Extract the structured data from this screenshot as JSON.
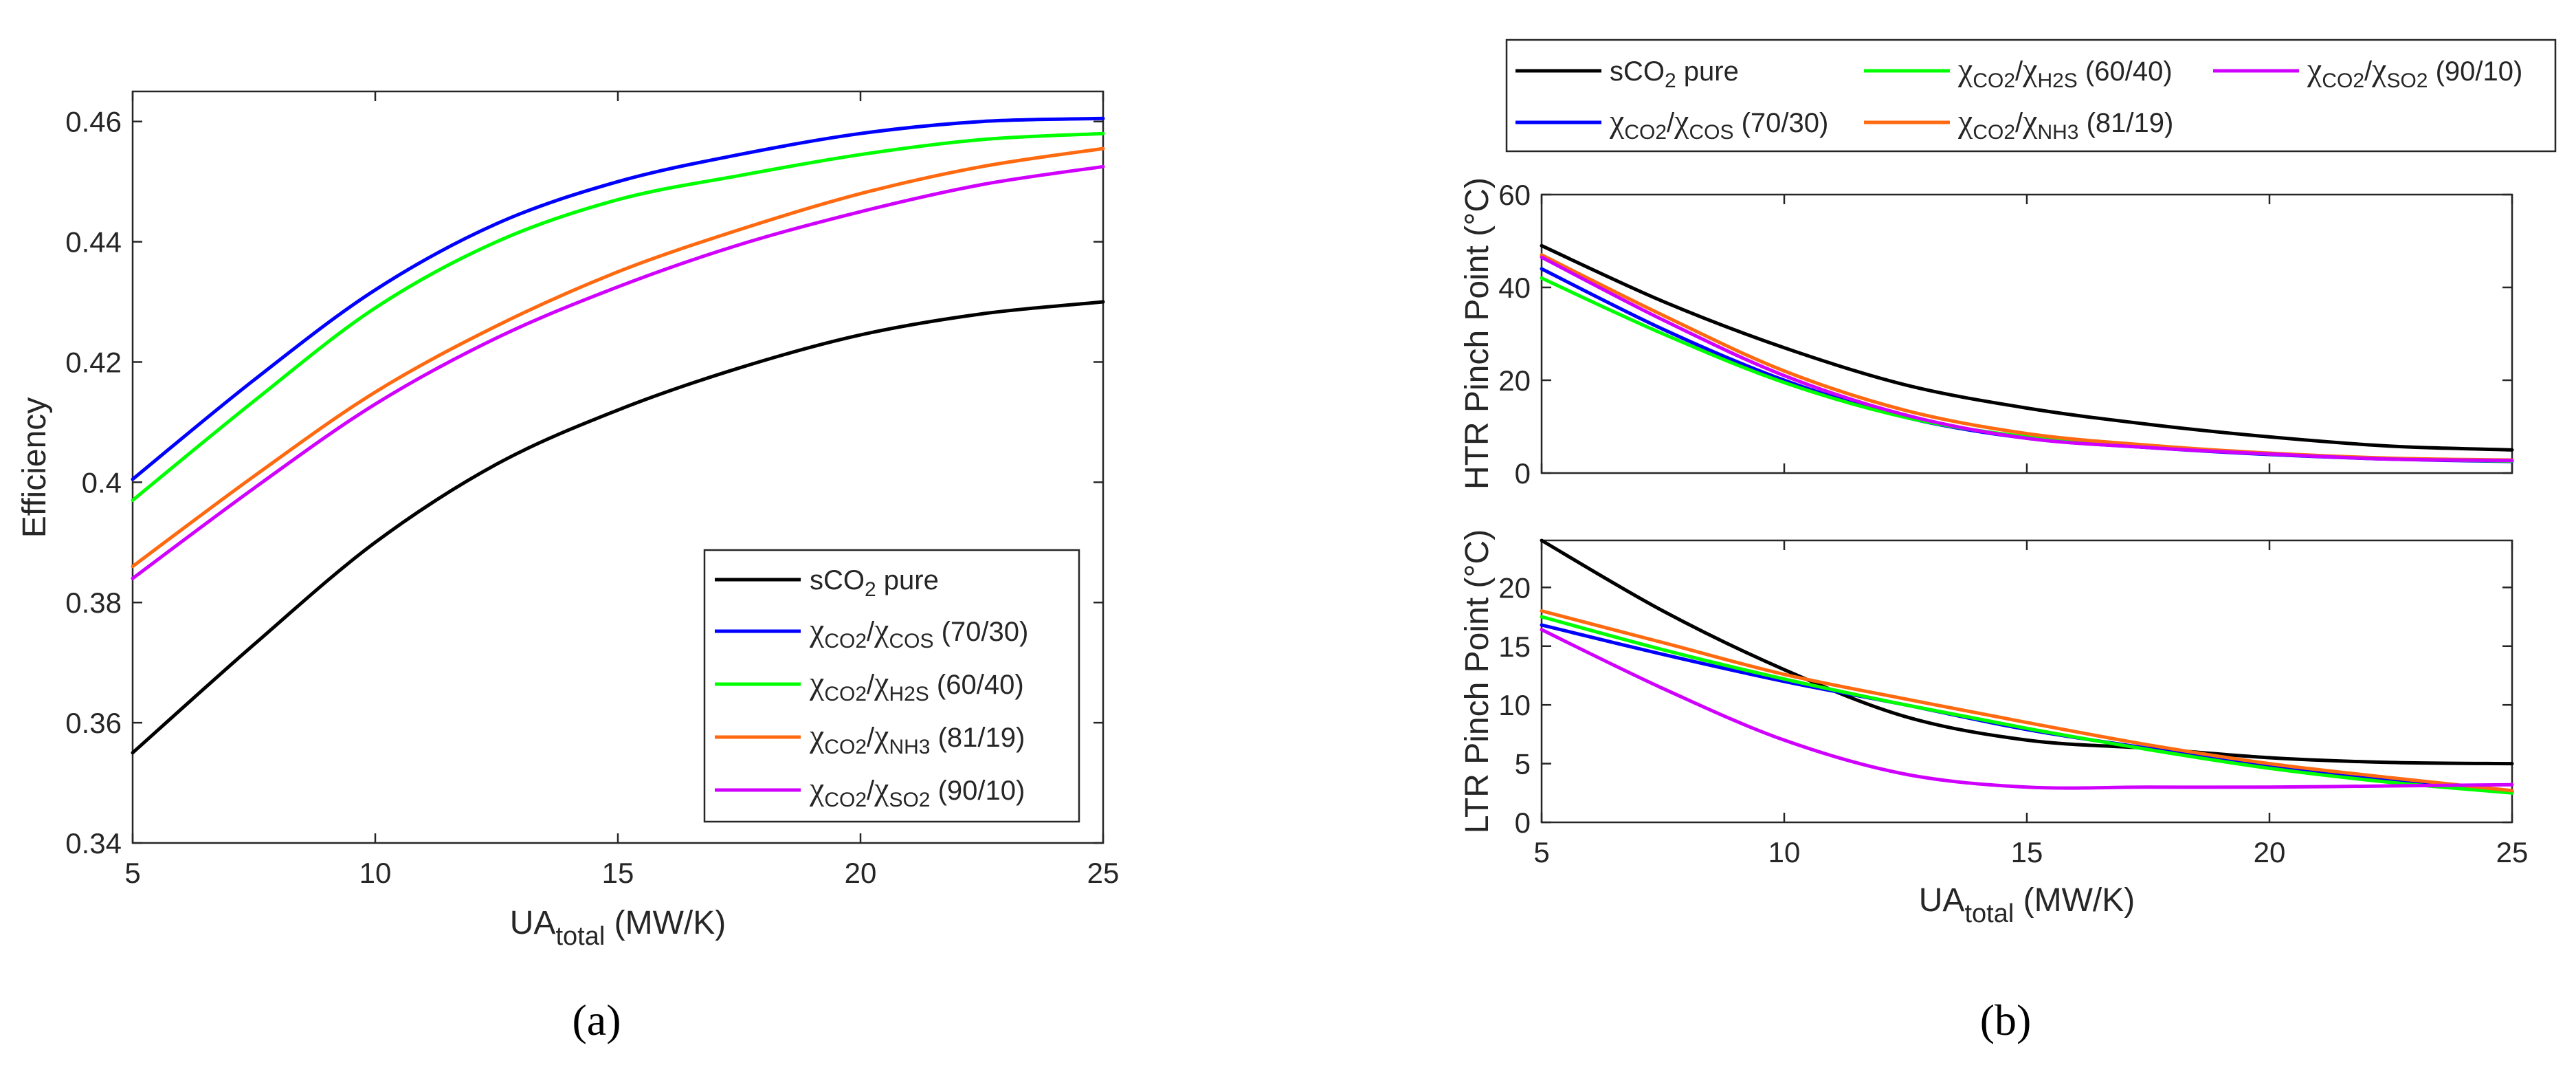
{
  "chart_data": [
    {
      "id": "a",
      "type": "line",
      "panel_label": "(a)",
      "title": "",
      "xlabel": {
        "base": "UA",
        "sub": "total",
        "rest": " (MW/K)"
      },
      "ylabel": "Efficiency",
      "xlim": [
        5,
        25
      ],
      "ylim": [
        0.34,
        0.465
      ],
      "xticks": [
        5,
        10,
        15,
        20,
        25
      ],
      "yticks": [
        0.34,
        0.36,
        0.38,
        0.4,
        0.42,
        0.44,
        0.46
      ],
      "ytick_labels": [
        "0.34",
        "0.36",
        "0.38",
        "0.4",
        "0.42",
        "0.44",
        "0.46"
      ],
      "legend_position": "bottom-right",
      "x": [
        5,
        7.5,
        10,
        12.5,
        15,
        17.5,
        20,
        22.5,
        25
      ],
      "series": [
        {
          "key": "pure",
          "values": [
            0.355,
            0.373,
            0.39,
            0.403,
            0.412,
            0.419,
            0.4245,
            0.428,
            0.43
          ]
        },
        {
          "key": "cos",
          "values": [
            0.4005,
            0.417,
            0.432,
            0.443,
            0.45,
            0.4545,
            0.458,
            0.46,
            0.4605
          ]
        },
        {
          "key": "h2s",
          "values": [
            0.397,
            0.4135,
            0.429,
            0.44,
            0.447,
            0.451,
            0.4545,
            0.457,
            0.458
          ]
        },
        {
          "key": "nh3",
          "values": [
            0.386,
            0.401,
            0.415,
            0.426,
            0.435,
            0.442,
            0.448,
            0.4525,
            0.4555
          ]
        },
        {
          "key": "so2",
          "values": [
            0.384,
            0.399,
            0.413,
            0.424,
            0.4325,
            0.4395,
            0.445,
            0.4495,
            0.4525
          ]
        }
      ]
    },
    {
      "id": "b-htr",
      "type": "line",
      "panel_label": "(b)",
      "title": "",
      "xlabel": {
        "base": "",
        "sub": "",
        "rest": ""
      },
      "ylabel": "HTR Pinch Point (°C)",
      "xlim": [
        5,
        25
      ],
      "ylim": [
        0,
        60
      ],
      "xticks": [],
      "yticks": [
        0,
        20,
        40,
        60
      ],
      "ytick_labels": [
        "0",
        "20",
        "40",
        "60"
      ],
      "x": [
        5,
        7.5,
        10,
        12.5,
        15,
        17.5,
        20,
        22.5,
        25
      ],
      "series": [
        {
          "key": "pure",
          "values": [
            49,
            37,
            27,
            19,
            14,
            10.5,
            7.8,
            5.8,
            5
          ]
        },
        {
          "key": "cos",
          "values": [
            44,
            31,
            20,
            12,
            7.5,
            5.5,
            4,
            3,
            2.5
          ]
        },
        {
          "key": "h2s",
          "values": [
            42,
            30,
            19.5,
            12,
            7.8,
            5.7,
            4.1,
            3.1,
            2.6
          ]
        },
        {
          "key": "nh3",
          "values": [
            47,
            34,
            22,
            13.5,
            8.5,
            6,
            4.3,
            3.2,
            2.8
          ]
        },
        {
          "key": "so2",
          "values": [
            46.5,
            33,
            21,
            12.5,
            7.5,
            5.5,
            4.1,
            3,
            2.7
          ]
        }
      ]
    },
    {
      "id": "b-ltr",
      "type": "line",
      "title": "",
      "xlabel": {
        "base": "UA",
        "sub": "total",
        "rest": " (MW/K)"
      },
      "ylabel": "LTR Pinch Point (°C)",
      "xlim": [
        5,
        25
      ],
      "ylim": [
        0,
        24
      ],
      "xticks": [
        5,
        10,
        15,
        20,
        25
      ],
      "yticks": [
        0,
        5,
        10,
        15,
        20
      ],
      "ytick_labels": [
        "0",
        "5",
        "10",
        "15",
        "20"
      ],
      "x": [
        5,
        7.5,
        10,
        12.5,
        15,
        17.5,
        20,
        22.5,
        25
      ],
      "series": [
        {
          "key": "pure",
          "values": [
            24,
            18,
            13,
            9,
            7,
            6.3,
            5.5,
            5.1,
            5
          ]
        },
        {
          "key": "cos",
          "values": [
            16.8,
            14.3,
            12,
            10,
            7.9,
            6.3,
            4.8,
            3.6,
            2.6
          ]
        },
        {
          "key": "h2s",
          "values": [
            17.5,
            14.7,
            12.2,
            10,
            8,
            6.2,
            4.6,
            3.4,
            2.5
          ]
        },
        {
          "key": "nh3",
          "values": [
            18,
            15.3,
            12.6,
            10.5,
            8.5,
            6.6,
            5,
            3.8,
            2.7
          ]
        },
        {
          "key": "so2",
          "values": [
            16.4,
            11.4,
            7,
            4.1,
            3,
            3,
            3,
            3.1,
            3.2
          ]
        }
      ]
    }
  ],
  "legend_entries": [
    {
      "key": "pure",
      "color": "#000000",
      "base": "sCO",
      "sub": "2",
      "rest": " pure"
    },
    {
      "key": "cos",
      "color": "#0000ff",
      "chi1": "χ",
      "sub1": "CO2",
      "slash": "/",
      "chi2": "χ",
      "sub2": "COS",
      "ratio": " (70/30)"
    },
    {
      "key": "h2s",
      "color": "#00ff00",
      "chi1": "χ",
      "sub1": "CO2",
      "slash": "/",
      "chi2": "χ",
      "sub2": "H2S",
      "ratio": " (60/40)"
    },
    {
      "key": "nh3",
      "color": "#ff6a10",
      "chi1": "χ",
      "sub1": "CO2",
      "slash": "/",
      "chi2": "χ",
      "sub2": "NH3",
      "ratio": " (81/19)"
    },
    {
      "key": "so2",
      "color": "#d000ff",
      "chi1": "χ",
      "sub1": "CO2",
      "slash": "/",
      "chi2": "χ",
      "sub2": "SO2",
      "ratio": " (90/10)"
    }
  ]
}
